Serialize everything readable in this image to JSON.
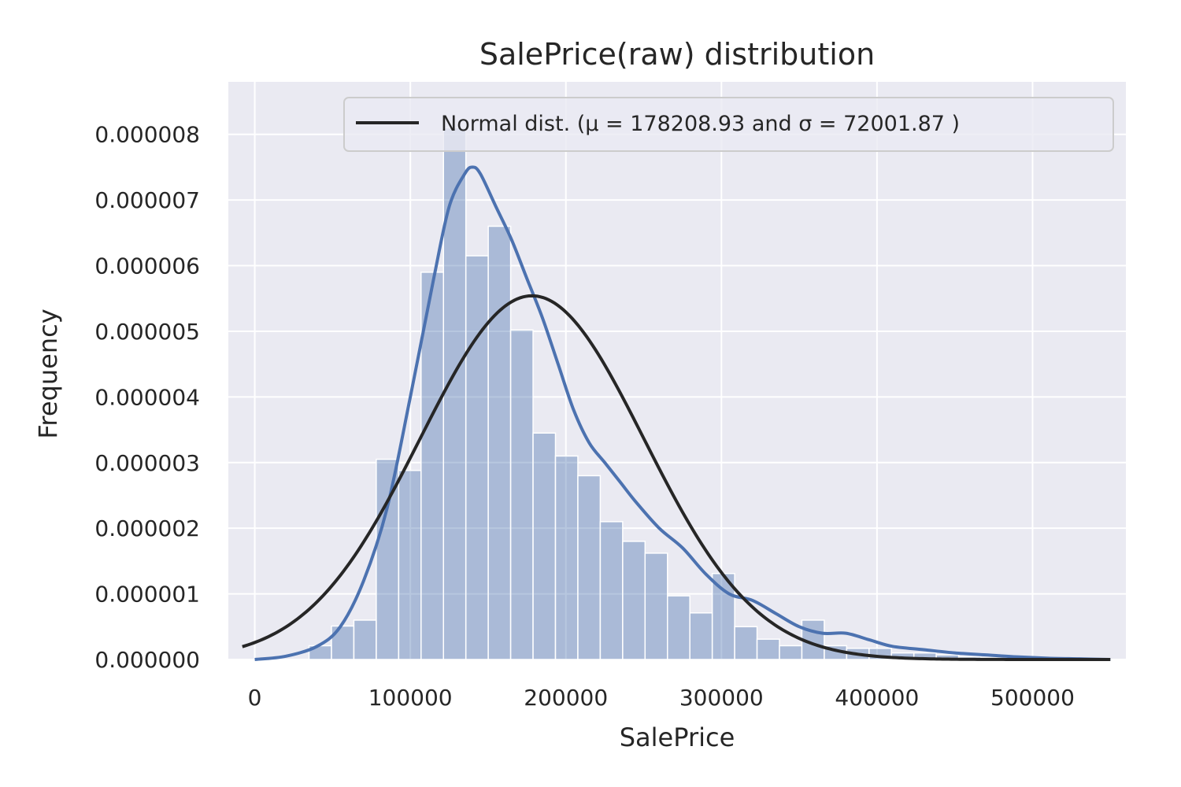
{
  "colors": {
    "axes_bg": "#eaeaf2",
    "grid": "#ffffff",
    "hist_fill": "#4c72b0",
    "kde_line": "#4c72b0",
    "normal_line": "#262626",
    "text": "#262626"
  },
  "chart_data": {
    "type": "bar",
    "title": "SalePrice(raw) distribution",
    "xlabel": "SalePrice",
    "ylabel": "Frequency",
    "xlim": [
      -17000,
      560000
    ],
    "ylim": [
      0,
      8.8e-06
    ],
    "grid": true,
    "legend_position": "top-right",
    "x_ticks": [
      0,
      100000,
      200000,
      300000,
      400000,
      500000
    ],
    "x_tick_labels": [
      "0",
      "100000",
      "200000",
      "300000",
      "400000",
      "500000"
    ],
    "y_ticks": [
      0,
      1e-06,
      2e-06,
      3e-06,
      4e-06,
      5e-06,
      6e-06,
      7e-06,
      8e-06
    ],
    "y_tick_labels": [
      "0.000000",
      "0.000001",
      "0.000002",
      "0.000003",
      "0.000004",
      "0.000005",
      "0.000006",
      "0.000007",
      "0.000008"
    ],
    "legend_label": "Normal dist. (μ = 178208.93 and σ = 72001.87 )",
    "histogram": {
      "bin_start": 34900,
      "bin_width": 14400,
      "values": [
        2.1e-07,
        5.1e-07,
        6e-07,
        3.05e-06,
        2.88e-06,
        5.9e-06,
        8.1e-06,
        6.15e-06,
        6.6e-06,
        5.02e-06,
        3.45e-06,
        3.1e-06,
        2.8e-06,
        2.1e-06,
        1.8e-06,
        1.62e-06,
        9.7e-07,
        7.1e-07,
        1.31e-06,
        5e-07,
        3.1e-07,
        2.1e-07,
        6e-07,
        2.1e-07,
        1.7e-07,
        1.7e-07,
        1e-07,
        1e-07,
        7e-08,
        4e-08,
        3e-08,
        2e-08,
        2e-08,
        1e-08,
        1e-08
      ]
    },
    "series": [
      {
        "type": "line",
        "x": [
          0,
          20000,
          40000,
          55000,
          70000,
          85000,
          100000,
          115000,
          125000,
          135000,
          140000,
          145000,
          155000,
          165000,
          175000,
          185000,
          195000,
          205000,
          215000,
          225000,
          235000,
          245000,
          260000,
          275000,
          290000,
          305000,
          320000,
          335000,
          350000,
          365000,
          380000,
          395000,
          410000,
          430000,
          450000,
          470000,
          490000,
          510000,
          530000,
          550000
        ],
        "y": [
          0.0,
          5e-08,
          2e-07,
          5e-07,
          1.2e-06,
          2.3e-06,
          4e-06,
          5.8e-06,
          6.9e-06,
          7.4e-06,
          7.5e-06,
          7.4e-06,
          6.9e-06,
          6.4e-06,
          5.8e-06,
          5.2e-06,
          4.5e-06,
          3.8e-06,
          3.3e-06,
          3e-06,
          2.7e-06,
          2.4e-06,
          2e-06,
          1.7e-06,
          1.3e-06,
          1e-06,
          9e-07,
          7e-07,
          5e-07,
          4e-07,
          4e-07,
          3e-07,
          2e-07,
          1.5e-07,
          1e-07,
          7e-08,
          4e-08,
          2e-08,
          1e-08,
          0.0
        ]
      },
      {
        "type": "line",
        "mu": 178208.93,
        "sigma": 72001.87,
        "x_range": [
          -8000,
          550000
        ]
      }
    ]
  }
}
